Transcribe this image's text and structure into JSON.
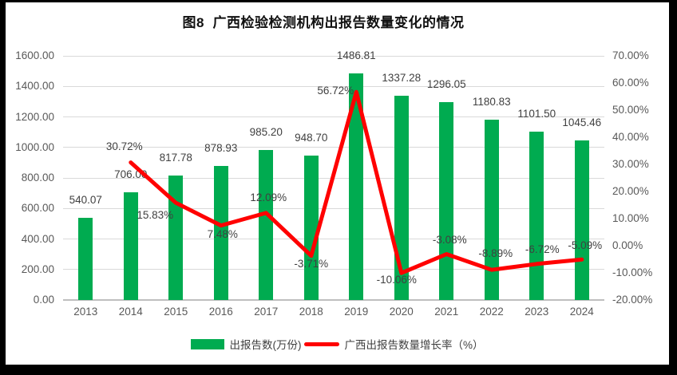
{
  "title": "图8  广西检验检测机构出报告数量变化的情况",
  "colors": {
    "bar": "#00AB50",
    "line": "#FF0000",
    "grid": "#D9D9D9",
    "baseline": "#BFBFBF",
    "axis_text": "#595959",
    "label_text": "#404040",
    "frame": "#000000"
  },
  "chart_data": {
    "type": "combo",
    "title": "图8  广西检验检测机构出报告数量变化的情况",
    "categories": [
      "2013",
      "2014",
      "2015",
      "2016",
      "2017",
      "2018",
      "2019",
      "2020",
      "2021",
      "2022",
      "2023",
      "2024"
    ],
    "series": [
      {
        "name": "出报告数(万份)",
        "type": "bar",
        "axis": "left",
        "color": "#00AB50",
        "values": [
          540.07,
          706.0,
          817.78,
          878.93,
          985.2,
          948.7,
          1486.81,
          1337.28,
          1296.05,
          1180.83,
          1101.5,
          1045.46
        ],
        "labels": [
          "540.07",
          "706.00",
          "817.78",
          "878.93",
          "985.20",
          "948.70",
          "1486.81",
          "1337.28",
          "1296.05",
          "1180.83",
          "1101.50",
          "1045.46"
        ]
      },
      {
        "name": "广西出报告数量增长率（%）",
        "type": "line",
        "axis": "right",
        "color": "#FF0000",
        "values": [
          null,
          30.72,
          15.83,
          7.48,
          12.09,
          -3.71,
          56.72,
          -10.06,
          -3.08,
          -8.89,
          -6.72,
          -5.09
        ],
        "labels": [
          null,
          "30.72%",
          "15.83%",
          "7.48%",
          "12.09%",
          "-3.71%",
          "56.72%",
          "-10.06%",
          "-3.08%",
          "-8.89%",
          "-6.72%",
          "-5.09%"
        ],
        "label_offsets": [
          null,
          [
            -8,
            -20
          ],
          [
            -26,
            16
          ],
          [
            2,
            11
          ],
          [
            3,
            -19
          ],
          [
            0,
            10
          ],
          [
            -26,
            -1
          ],
          [
            -6,
            9
          ],
          [
            4,
            -17
          ],
          [
            5,
            -20
          ],
          [
            7,
            -18
          ],
          [
            4,
            -17
          ]
        ]
      }
    ],
    "left_axis": {
      "min": 0,
      "max": 1600,
      "step": 200,
      "tick_labels": [
        "0.00",
        "200.00",
        "400.00",
        "600.00",
        "800.00",
        "1000.00",
        "1200.00",
        "1400.00",
        "1600.00"
      ]
    },
    "right_axis": {
      "min": -20,
      "max": 70,
      "step": 10,
      "tick_labels": [
        "-20.00%",
        "-10.00%",
        "0.00%",
        "10.00%",
        "20.00%",
        "30.00%",
        "40.00%",
        "50.00%",
        "60.00%",
        "70.00%"
      ]
    },
    "grid": "horizontal",
    "legend_position": "bottom",
    "legend": [
      {
        "label": "出报告数(万份)",
        "swatch": "bar"
      },
      {
        "label": "广西出报告数量增长率（%）",
        "swatch": "line"
      }
    ]
  }
}
